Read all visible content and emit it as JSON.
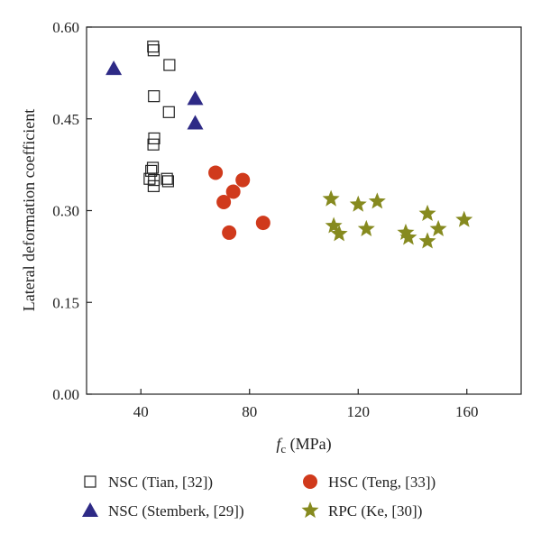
{
  "chart_data": {
    "type": "scatter",
    "xlabel": "fc (MPa)",
    "xlabel_main": "f",
    "xlabel_sub": "c",
    "xlabel_unit": " (MPa)",
    "ylabel": "Lateral deformation coefficient",
    "xlim": [
      20,
      180
    ],
    "ylim": [
      0,
      0.6
    ],
    "xticks": [
      40,
      80,
      120,
      160
    ],
    "yticks": [
      0.0,
      0.15,
      0.3,
      0.45,
      0.6
    ],
    "ytick_labels": [
      "0.00",
      "0.15",
      "0.30",
      "0.45",
      "0.60"
    ],
    "grid": false,
    "legend_position": "bottom",
    "series": [
      {
        "name": "NSC (Tian, [32])",
        "marker": "open-square",
        "color": "#222222",
        "points": [
          [
            44.5,
            0.568
          ],
          [
            44.7,
            0.562
          ],
          [
            50.5,
            0.538
          ],
          [
            44.8,
            0.487
          ],
          [
            50.3,
            0.461
          ],
          [
            44.9,
            0.418
          ],
          [
            44.6,
            0.408
          ],
          [
            44.4,
            0.37
          ],
          [
            43.8,
            0.365
          ],
          [
            43.2,
            0.352
          ],
          [
            44.8,
            0.35
          ],
          [
            49.6,
            0.352
          ],
          [
            50.0,
            0.348
          ],
          [
            44.7,
            0.34
          ]
        ]
      },
      {
        "name": "NSC (Stemberk, [29])",
        "marker": "filled-triangle",
        "color": "#2e2a86",
        "points": [
          [
            30,
            0.532
          ],
          [
            60,
            0.483
          ],
          [
            60,
            0.443
          ]
        ]
      },
      {
        "name": "HSC (Teng, [33])",
        "marker": "filled-circle",
        "color": "#d03a1c",
        "points": [
          [
            67.5,
            0.362
          ],
          [
            77.5,
            0.35
          ],
          [
            74,
            0.331
          ],
          [
            70.5,
            0.314
          ],
          [
            85,
            0.28
          ],
          [
            72.5,
            0.264
          ]
        ]
      },
      {
        "name": "RPC (Ke, [30])",
        "marker": "star",
        "color": "#868a1f",
        "points": [
          [
            110,
            0.319
          ],
          [
            127,
            0.315
          ],
          [
            120,
            0.31
          ],
          [
            145.5,
            0.295
          ],
          [
            159,
            0.285
          ],
          [
            111,
            0.275
          ],
          [
            123,
            0.27
          ],
          [
            149.5,
            0.27
          ],
          [
            137.5,
            0.264
          ],
          [
            113,
            0.262
          ],
          [
            138.5,
            0.256
          ],
          [
            145.5,
            0.25
          ]
        ]
      }
    ]
  }
}
